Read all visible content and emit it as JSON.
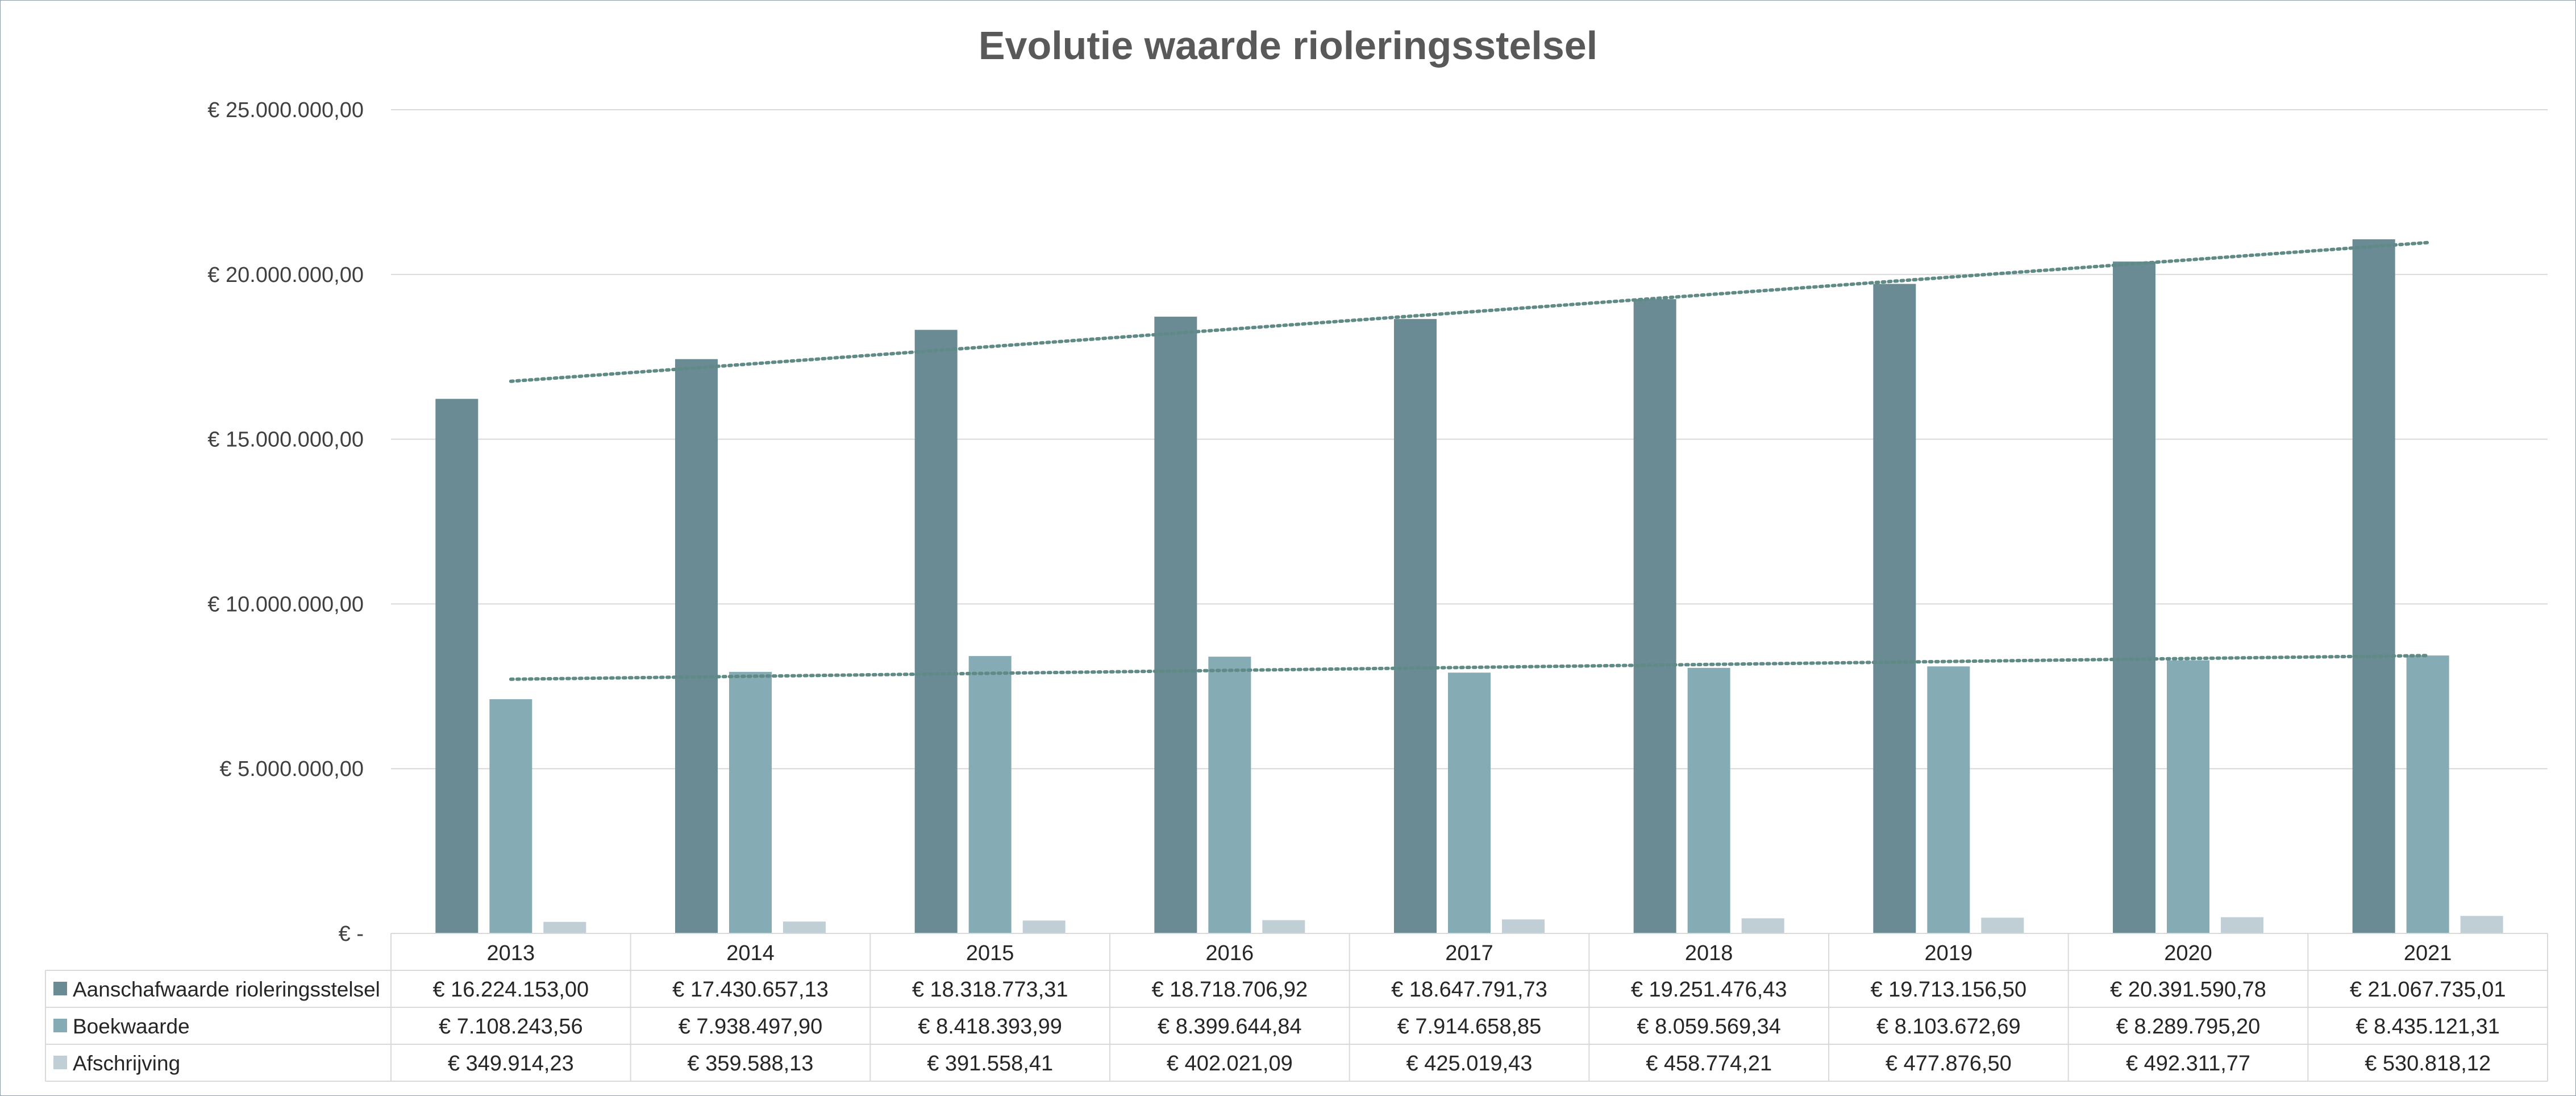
{
  "chart_data": {
    "type": "bar",
    "title": "Evolutie waarde rioleringsstelsel",
    "categories": [
      "2013",
      "2014",
      "2015",
      "2016",
      "2017",
      "2018",
      "2019",
      "2020",
      "2021"
    ],
    "ylim": [
      0,
      25000000
    ],
    "yticks": [
      0,
      5000000,
      10000000,
      15000000,
      20000000,
      25000000
    ],
    "ytick_labels": [
      "€ -",
      "€ 5.000.000,00",
      "€ 10.000.000,00",
      "€ 15.000.000,00",
      "€ 20.000.000,00",
      "€ 25.000.000,00"
    ],
    "grid": true,
    "legend_placement": "data table below chart",
    "series": [
      {
        "name": "Aanschafwaarde rioleringsstelsel",
        "color": "#6b8b94",
        "trendline": true,
        "values": [
          16224153.0,
          17430657.13,
          18318773.31,
          18718706.92,
          18647791.73,
          19251476.43,
          19713156.5,
          20391590.78,
          21067735.01
        ],
        "labels": [
          "€ 16.224.153,00",
          "€ 17.430.657,13",
          "€ 18.318.773,31",
          "€ 18.718.706,92",
          "€ 18.647.791,73",
          "€ 19.251.476,43",
          "€ 19.713.156,50",
          "€ 20.391.590,78",
          "€ 21.067.735,01"
        ]
      },
      {
        "name": "Boekwaarde",
        "color": "#85abb5",
        "trendline": true,
        "values": [
          7108243.56,
          7938497.9,
          8418393.99,
          8399644.84,
          7914658.85,
          8059569.34,
          8103672.69,
          8289795.2,
          8435121.31
        ],
        "labels": [
          "€ 7.108.243,56",
          "€ 7.938.497,90",
          "€ 8.418.393,99",
          "€ 8.399.644,84",
          "€ 7.914.658,85",
          "€ 8.059.569,34",
          "€ 8.103.672,69",
          "€ 8.289.795,20",
          "€ 8.435.121,31"
        ]
      },
      {
        "name": "Afschrijving",
        "color": "#bfcfd5",
        "trendline": false,
        "values": [
          349914.23,
          359588.13,
          391558.41,
          402021.09,
          425019.43,
          458774.21,
          477876.5,
          492311.77,
          530818.12
        ],
        "labels": [
          "€ 349.914,23",
          "€ 359.588,13",
          "€ 391.558,41",
          "€ 402.021,09",
          "€ 425.019,43",
          "€ 458.774,21",
          "€ 477.876,50",
          "€ 492.311,77",
          "€ 530.818,12"
        ]
      }
    ],
    "trend_color": "#5f8a86",
    "grid_color": "#d9d9d9",
    "table_border_color": "#d9d9d9"
  }
}
